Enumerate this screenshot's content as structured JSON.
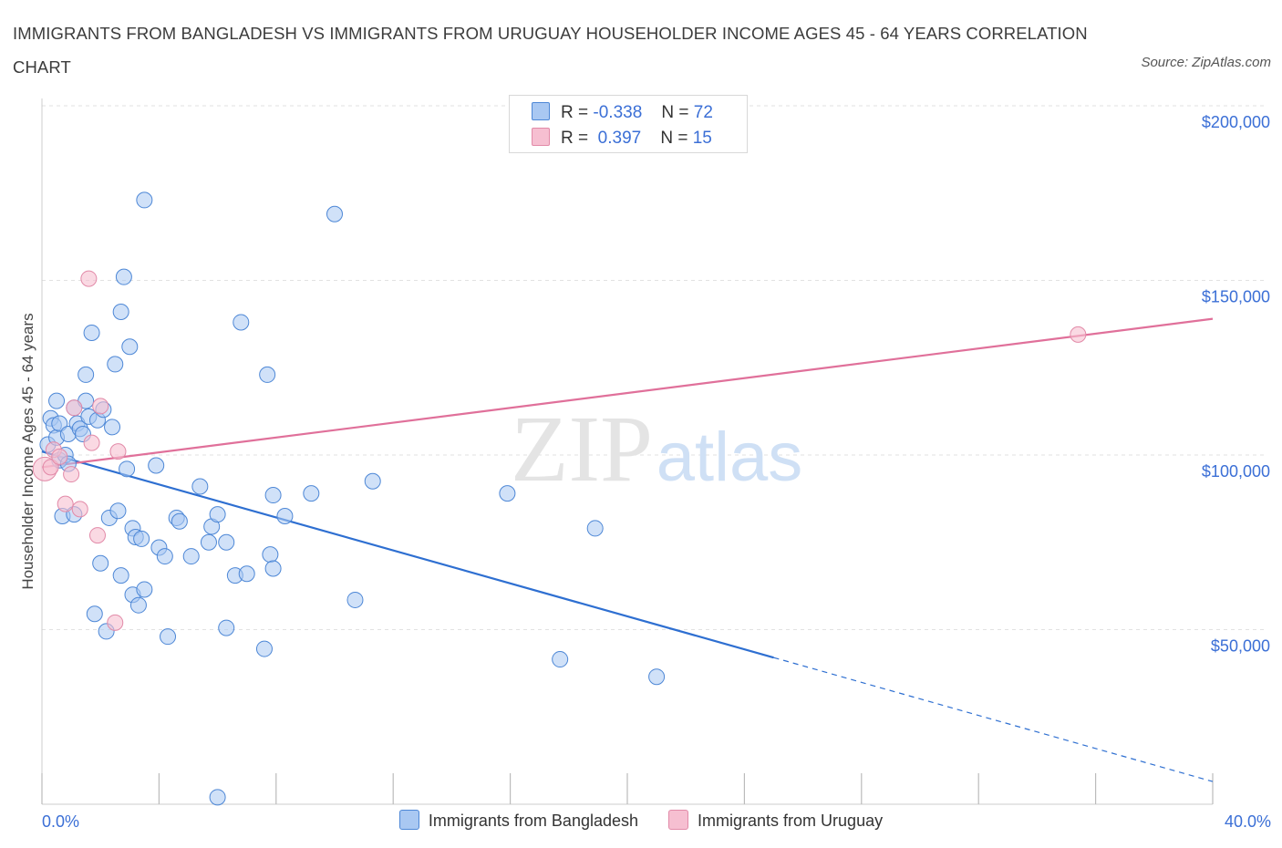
{
  "title": "IMMIGRANTS FROM BANGLADESH VS IMMIGRANTS FROM URUGUAY HOUSEHOLDER INCOME AGES 45 - 64 YEARS CORRELATION CHART",
  "source": "Source: ZipAtlas.com",
  "watermark": {
    "zip": "ZIP",
    "atlas": "atlas"
  },
  "legend_top": {
    "r_label": "R =",
    "n_label": "N =",
    "series": [
      {
        "r": "-0.338",
        "n": "72"
      },
      {
        "r": " 0.397",
        "n": "15"
      }
    ]
  },
  "colors": {
    "bangladesh_fill": "#a9c8f2",
    "bangladesh_stroke": "#4d87d6",
    "bangladesh_line": "#2e6fd1",
    "uruguay_fill": "#f6bfd1",
    "uruguay_stroke": "#e28aa8",
    "uruguay_line": "#e0709a",
    "grid": "#e2e2e2",
    "axis_text": "#3b6fd6"
  },
  "chart_data": {
    "type": "scatter",
    "title": "IMMIGRANTS FROM BANGLADESH VS IMMIGRANTS FROM URUGUAY HOUSEHOLDER INCOME AGES 45 - 64 YEARS CORRELATION CHART",
    "xlabel": "",
    "ylabel": "Householder Income Ages 45 - 64 years",
    "xlim": [
      0,
      40
    ],
    "ylim": [
      0,
      200000
    ],
    "x_tick_labels": [
      "0.0%",
      "40.0%"
    ],
    "y_ticks": [
      50000,
      100000,
      150000,
      200000
    ],
    "y_tick_labels": [
      "$50,000",
      "$100,000",
      "$150,000",
      "$200,000"
    ],
    "grid": true,
    "legend": "top-center and bottom",
    "series": [
      {
        "name": "Immigrants from Bangladesh",
        "R": -0.338,
        "N": 72,
        "trend": {
          "x": [
            0,
            25
          ],
          "y": [
            101000,
            42000
          ],
          "dashed_extension_to": [
            40,
            6500
          ]
        },
        "points": [
          [
            0.2,
            103000
          ],
          [
            0.3,
            110500
          ],
          [
            0.4,
            108500
          ],
          [
            0.5,
            115500
          ],
          [
            0.5,
            105000
          ],
          [
            0.6,
            109000
          ],
          [
            0.6,
            98500
          ],
          [
            0.7,
            82500
          ],
          [
            0.8,
            100000
          ],
          [
            0.9,
            97500
          ],
          [
            0.9,
            106000
          ],
          [
            1.1,
            113500
          ],
          [
            1.1,
            83000
          ],
          [
            1.2,
            109000
          ],
          [
            1.3,
            107500
          ],
          [
            1.4,
            106000
          ],
          [
            1.5,
            115500
          ],
          [
            1.5,
            123000
          ],
          [
            1.6,
            111000
          ],
          [
            1.7,
            135000
          ],
          [
            1.8,
            54500
          ],
          [
            1.9,
            110000
          ],
          [
            2.0,
            69000
          ],
          [
            2.1,
            113000
          ],
          [
            2.2,
            49500
          ],
          [
            2.3,
            82000
          ],
          [
            2.4,
            108000
          ],
          [
            2.5,
            126000
          ],
          [
            2.6,
            84000
          ],
          [
            2.7,
            141000
          ],
          [
            2.7,
            65500
          ],
          [
            2.8,
            151000
          ],
          [
            2.9,
            96000
          ],
          [
            3.0,
            131000
          ],
          [
            3.1,
            79000
          ],
          [
            3.1,
            60000
          ],
          [
            3.2,
            76500
          ],
          [
            3.3,
            57000
          ],
          [
            3.4,
            76000
          ],
          [
            3.5,
            61500
          ],
          [
            3.5,
            173000
          ],
          [
            3.9,
            97000
          ],
          [
            4.0,
            73500
          ],
          [
            4.2,
            71000
          ],
          [
            4.3,
            48000
          ],
          [
            4.6,
            82000
          ],
          [
            4.7,
            81000
          ],
          [
            5.1,
            71000
          ],
          [
            5.4,
            91000
          ],
          [
            5.7,
            75000
          ],
          [
            5.8,
            79500
          ],
          [
            6.0,
            83000
          ],
          [
            6.3,
            75000
          ],
          [
            6.3,
            50500
          ],
          [
            6.6,
            65500
          ],
          [
            6.8,
            138000
          ],
          [
            7.0,
            66000
          ],
          [
            7.6,
            44500
          ],
          [
            7.7,
            123000
          ],
          [
            7.8,
            71500
          ],
          [
            7.9,
            88500
          ],
          [
            7.9,
            67500
          ],
          [
            8.3,
            82500
          ],
          [
            9.2,
            89000
          ],
          [
            10.0,
            169000
          ],
          [
            10.7,
            58500
          ],
          [
            11.3,
            92500
          ],
          [
            15.9,
            89000
          ],
          [
            17.7,
            41500
          ],
          [
            18.9,
            79000
          ],
          [
            21.0,
            36500
          ],
          [
            6.0,
            2000
          ]
        ]
      },
      {
        "name": "Immigrants from Uruguay",
        "R": 0.397,
        "N": 15,
        "trend": {
          "x": [
            0,
            40
          ],
          "y": [
            96500,
            139000
          ]
        },
        "points": [
          [
            0.1,
            96000
          ],
          [
            0.3,
            96500
          ],
          [
            0.4,
            101500
          ],
          [
            0.6,
            99500
          ],
          [
            0.8,
            86000
          ],
          [
            1.0,
            94500
          ],
          [
            1.1,
            113500
          ],
          [
            1.3,
            84500
          ],
          [
            1.6,
            150500
          ],
          [
            1.7,
            103500
          ],
          [
            1.9,
            77000
          ],
          [
            2.0,
            114000
          ],
          [
            2.5,
            52000
          ],
          [
            2.6,
            101000
          ],
          [
            35.4,
            134500
          ]
        ]
      }
    ]
  }
}
